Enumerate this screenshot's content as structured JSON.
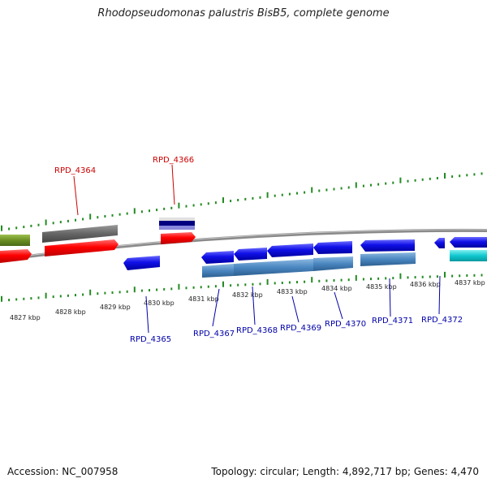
{
  "title": "Rhodopseudomonas palustris BisB5, complete genome",
  "footer": {
    "accession": "Accession: NC_007958",
    "summary": "Topology: circular; Length: 4,892,717 bp; Genes: 4,470"
  },
  "scale_labels": [
    "4827 kbp",
    "4828 kbp",
    "4829 kbp",
    "4830 kbp",
    "4831 kbp",
    "4832 kbp",
    "4833 kbp",
    "4834 kbp",
    "4835 kbp",
    "4836 kbp",
    "4837 kbp"
  ],
  "gene_labels": {
    "rpd4364": "RPD_4364",
    "rpd4365": "RPD_4365",
    "rpd4366": "RPD_4366",
    "rpd4367": "RPD_4367",
    "rpd4368": "RPD_4368",
    "rpd4369": "RPD_4369",
    "rpd4370": "RPD_4370",
    "rpd4371": "RPD_4371",
    "rpd4372": "RPD_4372"
  },
  "colors": {
    "forward_label": "#cc0000",
    "reverse_label": "#0000aa",
    "backbone": "#8a8a8a",
    "scale_ticks": "#228b22",
    "red_gene": "#ff0000",
    "blue_gene": "#1010e0",
    "steel_blue": "#4a86c0",
    "olive": "#6b8e23",
    "gray_gene": "#666666",
    "navy": "#000080",
    "cyan": "#10c8d0"
  }
}
